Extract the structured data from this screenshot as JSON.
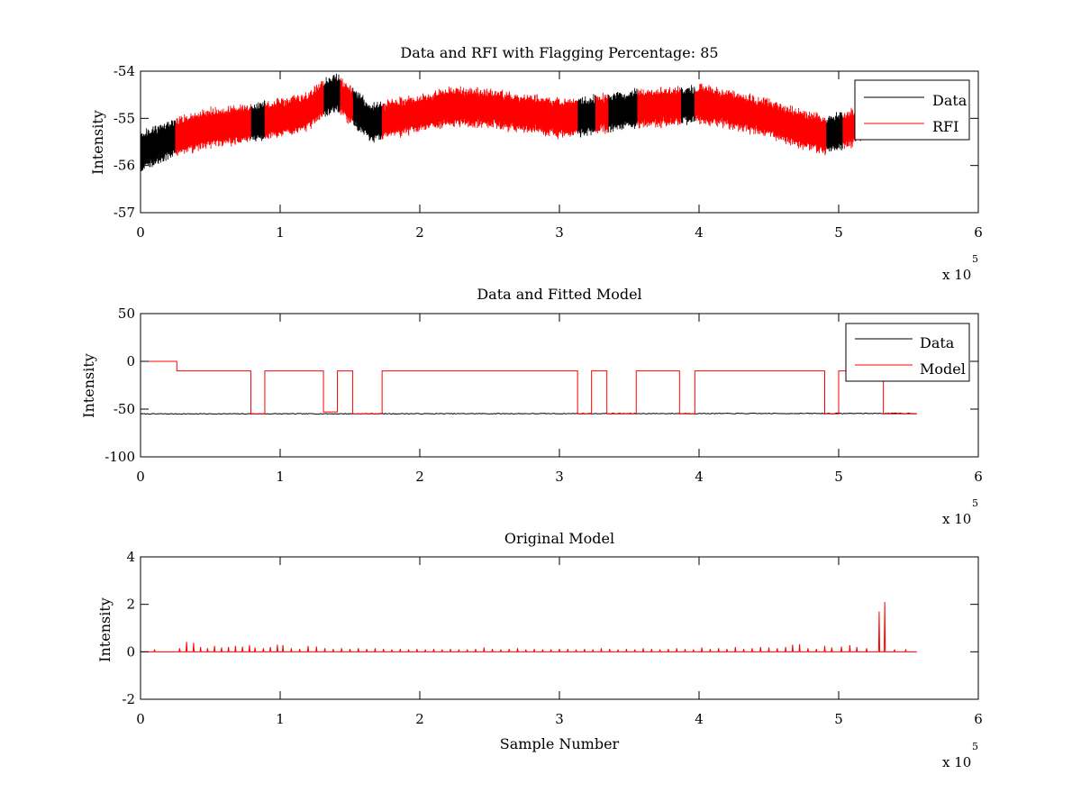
{
  "chart_data": [
    {
      "type": "line",
      "title": "Data and RFI with Flagging Percentage: 85",
      "xlabel": "",
      "ylabel": "Intensity",
      "xlim": [
        0,
        600000
      ],
      "ylim": [
        -57,
        -54
      ],
      "x_ticks": [
        0,
        1,
        2,
        3,
        4,
        5,
        6
      ],
      "y_ticks": [
        -54,
        -55,
        -56,
        -57
      ],
      "x_multiplier": {
        "base": "x 10",
        "exponent": "5"
      },
      "legend": {
        "position": "top-right",
        "entries": [
          "Data",
          "RFI"
        ]
      },
      "grid": false,
      "series": [
        {
          "name": "Data",
          "color": "#000000",
          "baseline": {
            "x": [
              0,
              25000,
              50000,
              80000,
              100000,
              120000,
              130000,
              140000,
              150000,
              165000,
              180000,
              200000,
              220000,
              250000,
              280000,
              300000,
              320000,
              350000,
              380000,
              400000,
              420000,
              450000,
              470000,
              490000,
              510000,
              520000,
              530000
            ],
            "y": [
              -55.7,
              -55.4,
              -55.2,
              -55.1,
              -55.0,
              -54.85,
              -54.6,
              -54.45,
              -54.7,
              -55.1,
              -55.0,
              -54.9,
              -54.75,
              -54.8,
              -54.9,
              -55.0,
              -54.95,
              -54.8,
              -54.75,
              -54.7,
              -54.8,
              -55.0,
              -55.2,
              -55.35,
              -55.2,
              -54.95,
              -54.85
            ],
            "noise_amplitude": 0.35
          }
        },
        {
          "name": "RFI",
          "color": "#ff0000",
          "flagged_ranges": [
            [
              25000,
              79000
            ],
            [
              89000,
              131000
            ],
            [
              143000,
              152000
            ],
            [
              173000,
              313000
            ],
            [
              326000,
              335000
            ],
            [
              356000,
              387000
            ],
            [
              397000,
              491000
            ],
            [
              503000,
              532000
            ]
          ]
        }
      ]
    },
    {
      "type": "line",
      "title": "Data and Fitted Model",
      "xlabel": "",
      "ylabel": "Intensity",
      "xlim": [
        0,
        600000
      ],
      "ylim": [
        -100,
        50
      ],
      "x_ticks": [
        0,
        1,
        2,
        3,
        4,
        5,
        6
      ],
      "y_ticks": [
        50,
        0,
        -50,
        -100
      ],
      "x_multiplier": {
        "base": "x 10",
        "exponent": "5"
      },
      "legend": {
        "position": "top-right",
        "entries": [
          "Data",
          "Model"
        ]
      },
      "grid": false,
      "series": [
        {
          "name": "Data",
          "color": "#000000",
          "x": [
            0,
            556000
          ],
          "y": [
            -55,
            -54.5
          ]
        },
        {
          "name": "Model",
          "color": "#ff0000",
          "x": [
            0,
            26000,
            26000,
            79000,
            79000,
            89000,
            89000,
            131000,
            131000,
            141000,
            141000,
            152000,
            152000,
            173000,
            173000,
            313000,
            313000,
            323000,
            323000,
            334000,
            334000,
            355000,
            355000,
            386000,
            386000,
            397000,
            397000,
            490000,
            490000,
            500000,
            500000,
            532000,
            532000,
            556000
          ],
          "y": [
            0,
            0,
            -10,
            -10,
            -55,
            -55,
            -10,
            -10,
            -53,
            -53,
            -10,
            -10,
            -55,
            -55,
            -10,
            -10,
            -55,
            -55,
            -10,
            -10,
            -55,
            -55,
            -10,
            -10,
            -55,
            -55,
            -10,
            -10,
            -55,
            -55,
            -10,
            -10,
            -55,
            -55
          ]
        }
      ]
    },
    {
      "type": "line",
      "title": "Original Model",
      "xlabel": "Sample Number",
      "ylabel": "Intensity",
      "xlim": [
        0,
        600000
      ],
      "ylim": [
        -2,
        4
      ],
      "x_ticks": [
        0,
        1,
        2,
        3,
        4,
        5,
        6
      ],
      "y_ticks": [
        4,
        2,
        0,
        -2
      ],
      "x_multiplier": {
        "base": "x 10",
        "exponent": "5"
      },
      "grid": false,
      "series": [
        {
          "color": "#ff0000",
          "x_range": [
            0,
            556000
          ],
          "spikes": [
            [
              10000,
              0.1
            ],
            [
              28000,
              0.15
            ],
            [
              33000,
              0.42
            ],
            [
              38000,
              0.38
            ],
            [
              43000,
              0.2
            ],
            [
              48000,
              0.15
            ],
            [
              53000,
              0.25
            ],
            [
              58000,
              0.18
            ],
            [
              63000,
              0.2
            ],
            [
              68000,
              0.25
            ],
            [
              73000,
              0.22
            ],
            [
              78000,
              0.28
            ],
            [
              82000,
              0.18
            ],
            [
              88000,
              0.15
            ],
            [
              93000,
              0.2
            ],
            [
              98000,
              0.3
            ],
            [
              102000,
              0.28
            ],
            [
              108000,
              0.15
            ],
            [
              114000,
              0.12
            ],
            [
              120000,
              0.25
            ],
            [
              126000,
              0.22
            ],
            [
              132000,
              0.15
            ],
            [
              138000,
              0.12
            ],
            [
              144000,
              0.15
            ],
            [
              150000,
              0.12
            ],
            [
              156000,
              0.15
            ],
            [
              162000,
              0.12
            ],
            [
              168000,
              0.15
            ],
            [
              174000,
              0.12
            ],
            [
              180000,
              0.1
            ],
            [
              186000,
              0.12
            ],
            [
              192000,
              0.1
            ],
            [
              198000,
              0.12
            ],
            [
              204000,
              0.1
            ],
            [
              210000,
              0.12
            ],
            [
              216000,
              0.1
            ],
            [
              222000,
              0.12
            ],
            [
              228000,
              0.1
            ],
            [
              234000,
              0.1
            ],
            [
              240000,
              0.12
            ],
            [
              246000,
              0.18
            ],
            [
              252000,
              0.12
            ],
            [
              258000,
              0.1
            ],
            [
              264000,
              0.12
            ],
            [
              270000,
              0.15
            ],
            [
              276000,
              0.1
            ],
            [
              282000,
              0.12
            ],
            [
              288000,
              0.1
            ],
            [
              294000,
              0.1
            ],
            [
              300000,
              0.12
            ],
            [
              306000,
              0.12
            ],
            [
              312000,
              0.1
            ],
            [
              318000,
              0.12
            ],
            [
              324000,
              0.1
            ],
            [
              330000,
              0.15
            ],
            [
              336000,
              0.12
            ],
            [
              342000,
              0.1
            ],
            [
              348000,
              0.12
            ],
            [
              354000,
              0.1
            ],
            [
              360000,
              0.15
            ],
            [
              366000,
              0.12
            ],
            [
              372000,
              0.1
            ],
            [
              378000,
              0.12
            ],
            [
              384000,
              0.15
            ],
            [
              390000,
              0.12
            ],
            [
              396000,
              0.1
            ],
            [
              402000,
              0.18
            ],
            [
              408000,
              0.12
            ],
            [
              414000,
              0.15
            ],
            [
              420000,
              0.12
            ],
            [
              426000,
              0.2
            ],
            [
              432000,
              0.12
            ],
            [
              438000,
              0.15
            ],
            [
              444000,
              0.2
            ],
            [
              450000,
              0.18
            ],
            [
              456000,
              0.15
            ],
            [
              462000,
              0.2
            ],
            [
              467000,
              0.3
            ],
            [
              472000,
              0.32
            ],
            [
              478000,
              0.15
            ],
            [
              484000,
              0.12
            ],
            [
              490000,
              0.25
            ],
            [
              495000,
              0.18
            ],
            [
              502000,
              0.22
            ],
            [
              508000,
              0.28
            ],
            [
              513000,
              0.2
            ],
            [
              520000,
              0.15
            ],
            [
              529000,
              1.7
            ],
            [
              533000,
              2.1
            ],
            [
              540000,
              0.1
            ],
            [
              548000,
              0.08
            ]
          ]
        }
      ]
    }
  ]
}
